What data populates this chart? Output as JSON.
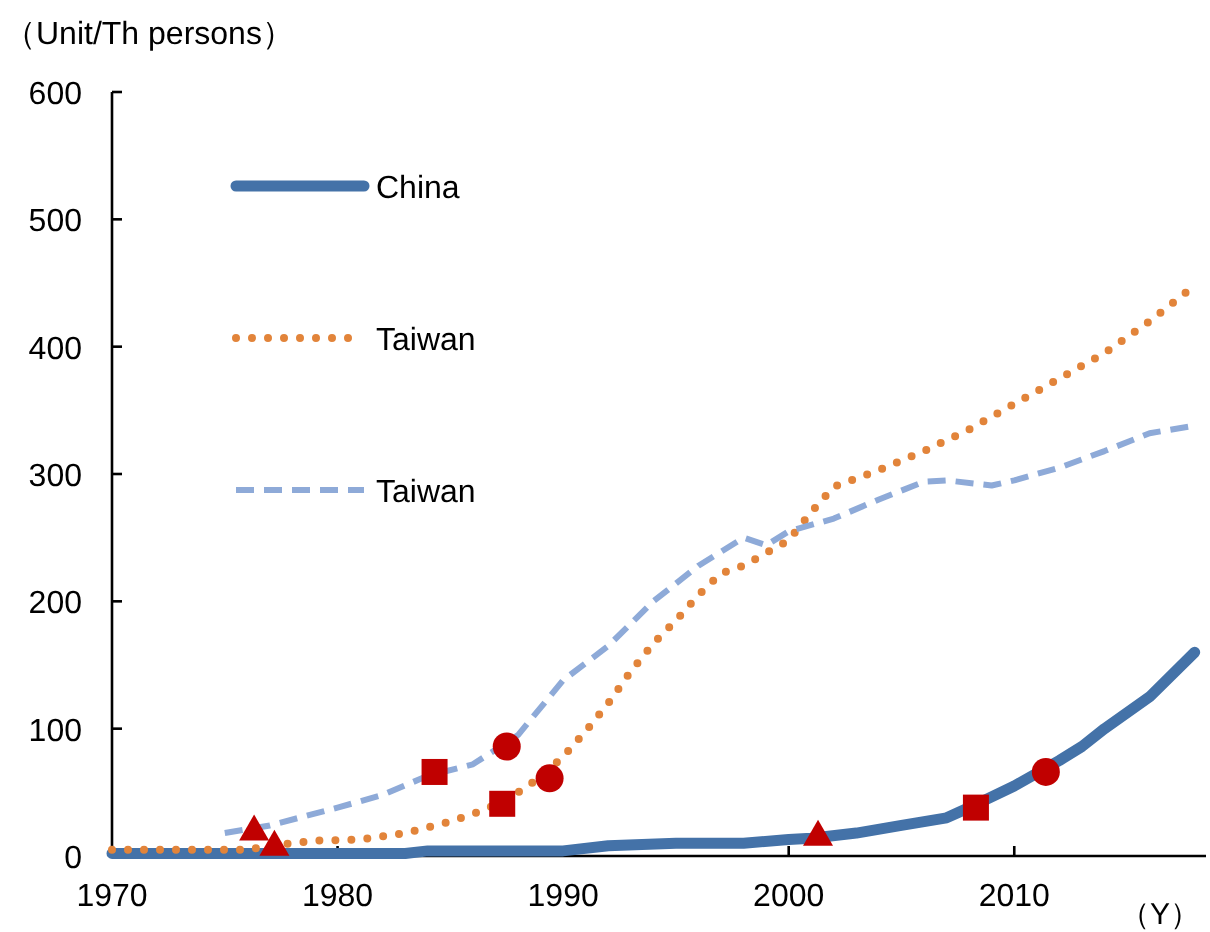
{
  "chart_data": {
    "type": "line",
    "ylabel": "（Unit/Th persons）",
    "xlabel": "（Y）",
    "xlim": [
      1970,
      2018.5
    ],
    "xticks": [
      1970,
      1980,
      1990,
      2000,
      2010
    ],
    "ylim": [
      0,
      600
    ],
    "yticks": [
      0,
      100,
      200,
      300,
      400,
      500,
      600
    ],
    "grid": false,
    "legend": "top left",
    "marker": "none",
    "series": [
      {
        "name": "China",
        "color": "#4472a8",
        "line_style": "solid",
        "x": [
          1970,
          1983,
          1984,
          1990,
          1992,
          1995,
          1998,
          2000,
          2001,
          2003,
          2005,
          2007,
          2008,
          2010,
          2011,
          2012,
          2013,
          2014,
          2016,
          2018
        ],
        "values": [
          2,
          2,
          4,
          4,
          8,
          10,
          10,
          13,
          14,
          18,
          24,
          30,
          38,
          55,
          65,
          75,
          86,
          100,
          125,
          160
        ]
      },
      {
        "name": "Taiwan",
        "color": "#e2843a",
        "line_style": "dotted",
        "x": [
          1970,
          1976,
          1977,
          1979,
          1981,
          1983,
          1985,
          1986,
          1987,
          1988,
          1989,
          1990,
          1991,
          1992,
          1993,
          1994,
          1995,
          1996,
          1997,
          1998,
          1999,
          2000,
          2001,
          2002,
          2004,
          2006,
          2008,
          2010,
          2012,
          2014,
          2016,
          2018
        ],
        "values": [
          5,
          5,
          8,
          12,
          13,
          18,
          27,
          33,
          40,
          50,
          62,
          78,
          98,
          120,
          145,
          167,
          185,
          205,
          222,
          228,
          238,
          248,
          270,
          290,
          303,
          318,
          335,
          355,
          375,
          395,
          420,
          448
        ]
      },
      {
        "name": "Taiwan",
        "color": "#8eaad8",
        "line_style": "dashed",
        "x": [
          1975,
          1977,
          1980,
          1982,
          1984,
          1986,
          1988,
          1990,
          1992,
          1994,
          1996,
          1998,
          1999,
          2000,
          2002,
          2004,
          2006,
          2007,
          2009,
          2010,
          2012,
          2014,
          2016,
          2018
        ],
        "values": [
          18,
          24,
          38,
          48,
          63,
          72,
          95,
          138,
          165,
          200,
          228,
          250,
          244,
          255,
          265,
          280,
          294,
          295,
          291,
          295,
          305,
          318,
          332,
          338
        ]
      },
      {
        "type": "scatter",
        "marker": "triangle",
        "color": "#c00000",
        "x": [
          1976.3,
          1977.2,
          2001.3
        ],
        "values": [
          20,
          8,
          16
        ]
      },
      {
        "type": "scatter",
        "marker": "square",
        "color": "#c00000",
        "x": [
          1984.3,
          1987.3,
          2008.3
        ],
        "values": [
          66,
          41,
          38
        ]
      },
      {
        "type": "scatter",
        "marker": "circle",
        "color": "#c00000",
        "x": [
          1987.5,
          1989.4,
          2011.4
        ],
        "values": [
          86,
          61,
          66
        ]
      }
    ]
  }
}
